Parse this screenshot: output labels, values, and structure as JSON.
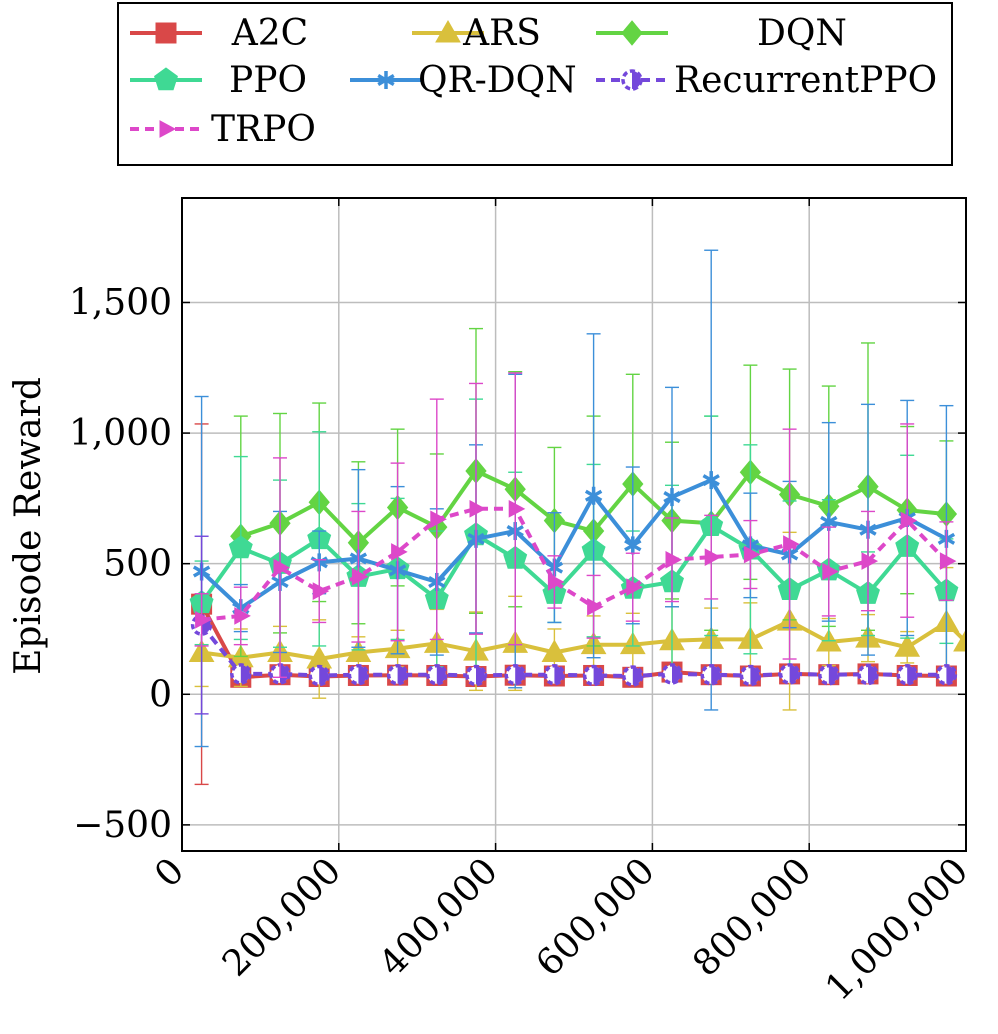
{
  "chart_data": {
    "type": "line",
    "title": "",
    "xlabel": "",
    "ylabel": "Episode Reward",
    "xlim": [
      0,
      1000000
    ],
    "ylim": [
      -600,
      1900
    ],
    "grid": true,
    "legend_position": "top",
    "xticks": [
      0,
      200000,
      400000,
      600000,
      800000,
      1000000
    ],
    "xtick_labels": [
      "0",
      "200,000",
      "400,000",
      "600,000",
      "800,000",
      "1,000,000"
    ],
    "yticks": [
      -500,
      0,
      500,
      1000,
      1500
    ],
    "ytick_labels": [
      "−500",
      "0",
      "500",
      "1,000",
      "1,500"
    ],
    "series": [
      {
        "name": "A2C",
        "color": "#d94848",
        "marker": "square",
        "dash": "solid",
        "x": [
          25000,
          75000,
          125000,
          175000,
          225000,
          275000,
          325000,
          375000,
          425000,
          475000,
          525000,
          575000,
          625000,
          675000,
          725000,
          775000,
          825000,
          875000,
          925000,
          975000
        ],
        "y": [
          345,
          65,
          75,
          68,
          72,
          73,
          72,
          68,
          73,
          70,
          72,
          65,
          85,
          75,
          70,
          78,
          75,
          78,
          72,
          70
        ],
        "err": [
          690,
          10,
          10,
          10,
          10,
          10,
          10,
          10,
          10,
          10,
          10,
          10,
          15,
          10,
          10,
          10,
          10,
          10,
          10,
          10
        ]
      },
      {
        "name": "ARS",
        "color": "#d9c03c",
        "marker": "triangle",
        "dash": "solid",
        "x": [
          25000,
          75000,
          125000,
          175000,
          225000,
          275000,
          325000,
          375000,
          425000,
          475000,
          525000,
          575000,
          625000,
          675000,
          725000,
          775000,
          825000,
          875000,
          925000,
          975000,
          1000000
        ],
        "y": [
          160,
          140,
          160,
          135,
          160,
          175,
          195,
          165,
          195,
          160,
          190,
          190,
          205,
          210,
          210,
          280,
          200,
          215,
          180,
          275,
          200
        ],
        "err": [
          130,
          110,
          100,
          150,
          60,
          70,
          130,
          150,
          180,
          90,
          110,
          120,
          130,
          120,
          140,
          340,
          90,
          90,
          60,
          210,
          0
        ]
      },
      {
        "name": "DQN",
        "color": "#63d443",
        "marker": "diamond",
        "dash": "solid",
        "x": [
          75000,
          125000,
          175000,
          225000,
          275000,
          325000,
          375000,
          425000,
          475000,
          525000,
          575000,
          625000,
          675000,
          725000,
          775000,
          825000,
          875000,
          925000,
          975000
        ],
        "y": [
          605,
          655,
          735,
          580,
          715,
          640,
          855,
          785,
          665,
          625,
          805,
          665,
          655,
          850,
          765,
          720,
          795,
          705,
          690
        ],
        "err": [
          460,
          420,
          380,
          310,
          300,
          280,
          545,
          450,
          280,
          440,
          420,
          300,
          410,
          410,
          480,
          460,
          550,
          320,
          280
        ]
      },
      {
        "name": "PPO",
        "color": "#3fd994",
        "marker": "pentagon",
        "dash": "solid",
        "x": [
          25000,
          75000,
          125000,
          175000,
          225000,
          275000,
          325000,
          375000,
          425000,
          475000,
          525000,
          575000,
          625000,
          675000,
          725000,
          775000,
          825000,
          875000,
          925000,
          975000
        ],
        "y": [
          350,
          560,
          500,
          595,
          450,
          480,
          365,
          610,
          520,
          385,
          550,
          405,
          430,
          645,
          555,
          400,
          475,
          385,
          565,
          395
        ],
        "err": [
          160,
          350,
          320,
          410,
          280,
          270,
          260,
          520,
          330,
          110,
          330,
          220,
          370,
          420,
          400,
          340,
          270,
          160,
          350,
          200
        ]
      },
      {
        "name": "QR-DQN",
        "color": "#3c8fd9",
        "marker": "star",
        "dash": "solid",
        "x": [
          25000,
          75000,
          125000,
          175000,
          225000,
          275000,
          325000,
          375000,
          425000,
          475000,
          525000,
          575000,
          625000,
          675000,
          725000,
          775000,
          825000,
          875000,
          925000,
          975000
        ],
        "y": [
          470,
          330,
          430,
          505,
          520,
          475,
          430,
          595,
          625,
          485,
          760,
          570,
          755,
          820,
          570,
          535,
          660,
          630,
          675,
          595
        ],
        "err": [
          670,
          90,
          270,
          120,
          340,
          320,
          280,
          360,
          600,
          210,
          620,
          300,
          420,
          880,
          200,
          280,
          380,
          480,
          450,
          510
        ]
      },
      {
        "name": "RecurrentPPO",
        "color": "#7448db",
        "marker": "circle-half",
        "dash": "dashed",
        "x": [
          25000,
          75000,
          125000,
          175000,
          225000,
          275000,
          325000,
          375000,
          425000,
          475000,
          525000,
          575000,
          625000,
          675000,
          725000,
          775000,
          825000,
          875000,
          925000,
          975000
        ],
        "y": [
          265,
          78,
          78,
          72,
          75,
          75,
          75,
          72,
          75,
          75,
          72,
          70,
          78,
          75,
          72,
          78,
          75,
          76,
          75,
          75
        ],
        "err": [
          340,
          8,
          8,
          8,
          8,
          8,
          8,
          8,
          8,
          8,
          8,
          8,
          8,
          8,
          8,
          8,
          8,
          8,
          8,
          8
        ]
      },
      {
        "name": "TRPO",
        "color": "#dd48c9",
        "marker": "arrow-right",
        "dash": "dashed",
        "x": [
          25000,
          75000,
          125000,
          175000,
          225000,
          275000,
          325000,
          375000,
          425000,
          475000,
          525000,
          575000,
          625000,
          675000,
          725000,
          775000,
          825000,
          875000,
          925000,
          975000
        ],
        "y": [
          285,
          300,
          485,
          395,
          450,
          545,
          670,
          710,
          710,
          430,
          335,
          410,
          515,
          525,
          535,
          575,
          470,
          510,
          665,
          510
        ],
        "err": [
          100,
          110,
          420,
          120,
          250,
          340,
          460,
          480,
          520,
          100,
          120,
          130,
          160,
          160,
          130,
          440,
          170,
          190,
          370,
          150
        ]
      }
    ]
  }
}
